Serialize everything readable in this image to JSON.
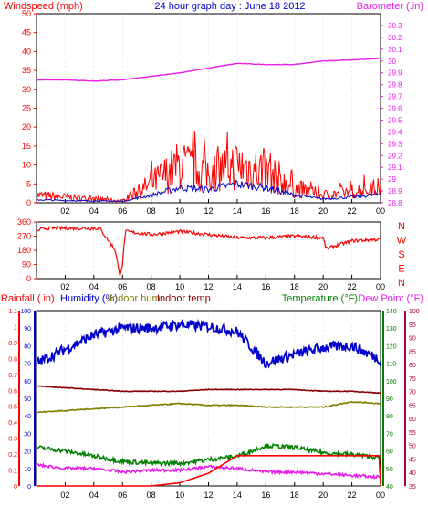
{
  "title": "24 hour graph day : June 18 2012",
  "colors": {
    "red": "#ff0000",
    "blue": "#0000cc",
    "magenta": "#e81ce8",
    "olive": "#808000",
    "maroon": "#8b0000",
    "green": "#008000",
    "yellow": "#e8e800",
    "darkred": "#aa0044",
    "axis": "#000000",
    "grid": "#c0c0c0"
  },
  "x_tick_labels": [
    "02",
    "04",
    "06",
    "08",
    "10",
    "12",
    "14",
    "16",
    "18",
    "20",
    "22",
    "00"
  ],
  "chart_data": [
    {
      "type": "line",
      "name": "wind-baro",
      "left_axis_label": "Windspeed (mph)",
      "right_axis_label": "Barometer (.in)",
      "ylim_left": [
        0,
        50
      ],
      "ylim_right": [
        28.8,
        30.4
      ],
      "y_ticks_left": [
        "0",
        "5",
        "10",
        "15",
        "20",
        "25",
        "30",
        "35",
        "40",
        "45",
        "50"
      ],
      "y_ticks_right": [
        "28.8",
        "28.9",
        "29",
        "29.1",
        "29.2",
        "29.3",
        "29.4",
        "29.5",
        "29.6",
        "29.7",
        "29.8",
        "29.9",
        "30",
        "30.1",
        "30.2",
        "30.3"
      ],
      "x_hours": [
        0,
        2,
        4,
        6,
        8,
        10,
        12,
        14,
        16,
        18,
        20,
        22,
        24
      ],
      "series": [
        {
          "name": "Windspeed",
          "color": "red",
          "values": [
            2,
            1.5,
            1,
            0.5,
            5,
            10,
            8,
            10,
            8,
            4,
            2,
            3,
            4
          ]
        },
        {
          "name": "Windspeed avg",
          "color": "blue",
          "values": [
            0.8,
            0.6,
            0.5,
            0.4,
            2,
            4,
            3.5,
            5,
            4,
            2,
            1,
            1.5,
            2.2
          ]
        },
        {
          "name": "Barometer",
          "color": "magenta",
          "values": [
            29.84,
            29.84,
            29.83,
            29.84,
            29.87,
            29.9,
            29.94,
            29.98,
            29.97,
            29.97,
            30,
            30.01,
            30.02
          ]
        }
      ]
    },
    {
      "type": "line",
      "name": "wind-direction",
      "ylim_left": [
        0,
        360
      ],
      "y_ticks_left": [
        "0",
        "90",
        "180",
        "270",
        "360"
      ],
      "compass_labels": [
        "N",
        "W",
        "S",
        "E",
        "N"
      ],
      "x_hours": [
        0,
        0.5,
        2,
        3,
        4.4,
        5.2,
        5.5,
        5.8,
        6,
        6.2,
        8,
        10,
        12,
        14,
        16,
        18,
        20,
        20.2,
        22,
        24
      ],
      "series": [
        {
          "name": "Wind direction",
          "color": "red",
          "values": [
            300,
            320,
            320,
            320,
            320,
            220,
            180,
            20,
            90,
            300,
            280,
            300,
            280,
            260,
            260,
            270,
            260,
            190,
            240,
            250
          ]
        }
      ]
    },
    {
      "type": "line",
      "name": "multi",
      "header_labels": [
        "Rainfall (.in)",
        "Humidity (%)",
        "Indoor hum",
        "Indoor temp",
        "Temperature (°F)",
        "Dew Point (°F)"
      ],
      "axis_rain": [
        "0",
        "0.1",
        "0.2",
        "0.3",
        "0.4",
        "0.5",
        "0.6",
        "0.7",
        "0.8",
        "0.9",
        "1",
        "1.1"
      ],
      "axis_humidity": [
        "0",
        "10",
        "20",
        "30",
        "40",
        "50",
        "60",
        "70",
        "80",
        "90",
        "100"
      ],
      "axis_temperature": [
        "40",
        "50",
        "60",
        "70",
        "80",
        "90",
        "100",
        "110",
        "120",
        "130",
        "140"
      ],
      "axis_dewpoint": [
        "35",
        "40",
        "45",
        "50",
        "55",
        "60",
        "65",
        "70",
        "75",
        "80",
        "85",
        "90",
        "95",
        "100"
      ],
      "ylim_humidity": [
        0,
        100
      ],
      "ylim_rain": [
        0,
        1.1
      ],
      "x_hours": [
        0,
        2,
        4,
        6,
        8,
        10,
        12,
        14,
        16,
        18,
        20,
        22,
        24
      ],
      "series": [
        {
          "name": "Humidity",
          "color": "blue",
          "values": [
            70,
            78,
            86,
            90,
            90,
            92,
            91,
            88,
            70,
            75,
            79,
            80,
            72
          ]
        },
        {
          "name": "Indoor hum",
          "color": "olive",
          "values": [
            42,
            43,
            44,
            45,
            46,
            47,
            46,
            46,
            45,
            45,
            45,
            48,
            47
          ]
        },
        {
          "name": "Indoor temp",
          "color": "maroon",
          "values": [
            57,
            56,
            55,
            54,
            54,
            54,
            55,
            55,
            55,
            55,
            54,
            54,
            53
          ]
        },
        {
          "name": "Temperature",
          "color": "green",
          "values": [
            22,
            20,
            17,
            14,
            13,
            13,
            15,
            17,
            23,
            22,
            19,
            18,
            16
          ]
        },
        {
          "name": "Dew Point",
          "color": "magenta",
          "values": [
            12,
            10,
            10,
            8,
            9,
            9,
            11,
            10,
            8,
            8,
            7,
            6,
            5
          ]
        },
        {
          "name": "Rainfall",
          "color": "red",
          "values": [
            0,
            0,
            0,
            0,
            0,
            0.02,
            0.08,
            0.19,
            0.19,
            0.19,
            0.19,
            0.19,
            0.19
          ]
        }
      ]
    }
  ]
}
